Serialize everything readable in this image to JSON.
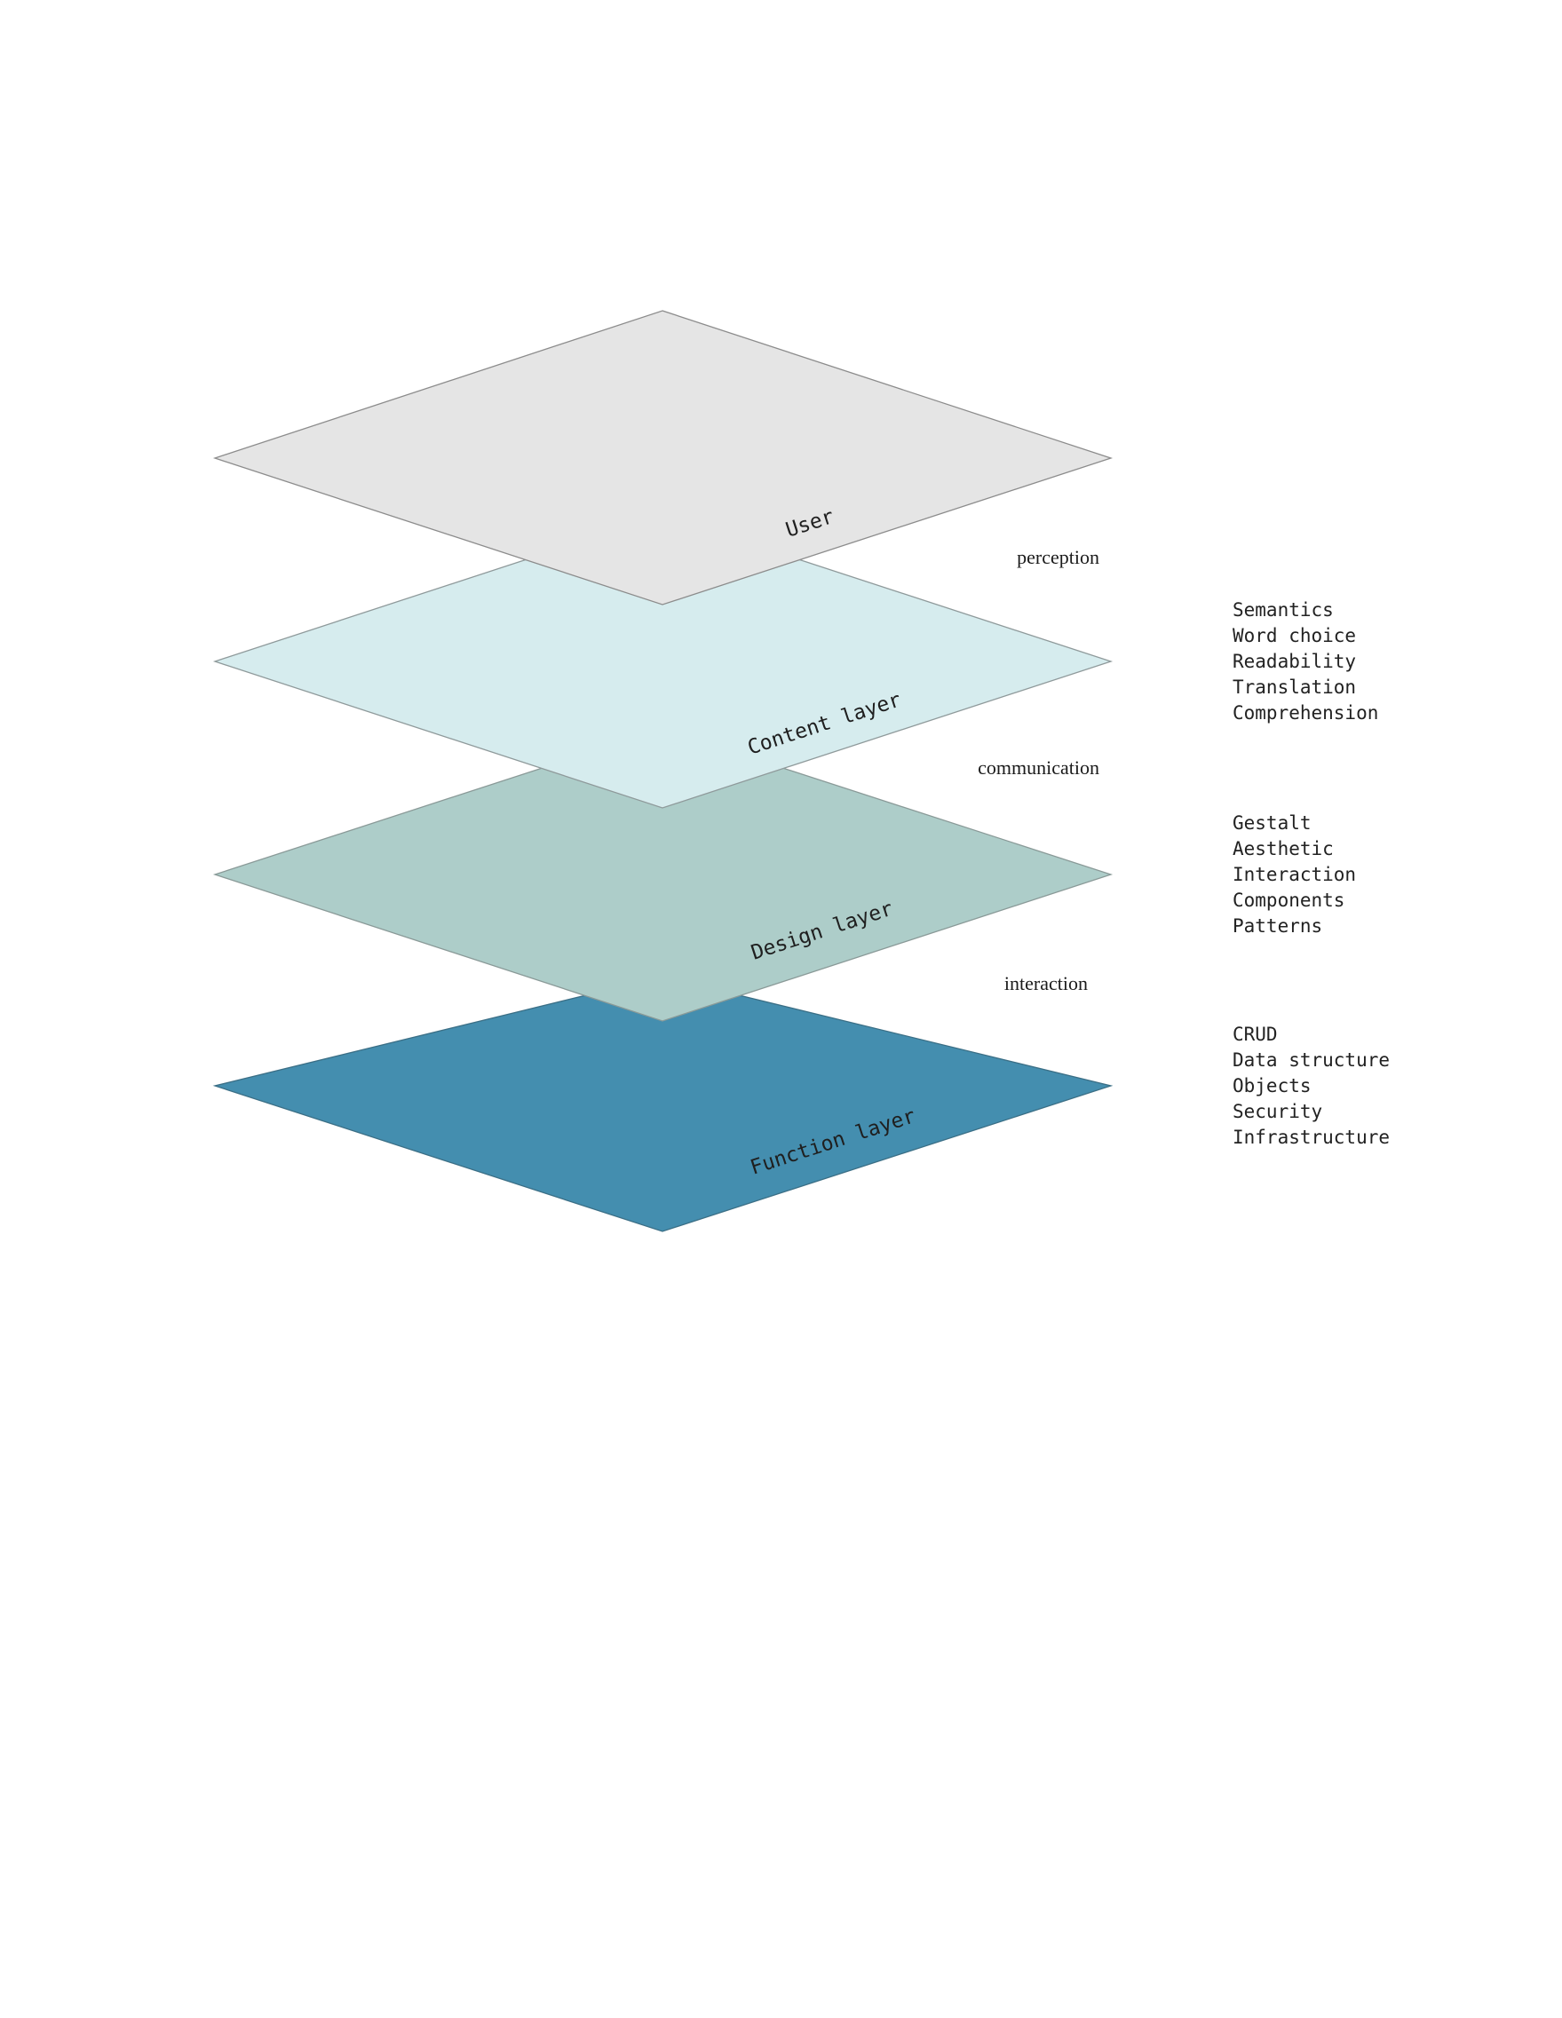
{
  "layers": [
    {
      "id": "function",
      "label": "Function layer",
      "fill": "#448eaf",
      "stroke": "#3b6f86"
    },
    {
      "id": "design",
      "label": "Design layer",
      "fill": "#adcdc9",
      "stroke": "#8a9a98"
    },
    {
      "id": "content",
      "label": "Content layer",
      "fill": "#d6ecee",
      "stroke": "#8f9a9b"
    },
    {
      "id": "user",
      "label": "User",
      "fill": "#e5e5e5",
      "stroke": "#8c8c8c"
    }
  ],
  "connectors": {
    "perception": "perception",
    "communication": "communication",
    "interaction": "interaction"
  },
  "details": {
    "content": [
      "Semantics",
      "Word choice",
      "Readability",
      "Translation",
      "Comprehension"
    ],
    "design": [
      "Gestalt",
      "Aesthetic",
      "Interaction",
      "Components",
      "Patterns"
    ],
    "function": [
      "CRUD",
      "Data structure",
      "Objects",
      "Security",
      "Infrastructure"
    ]
  }
}
